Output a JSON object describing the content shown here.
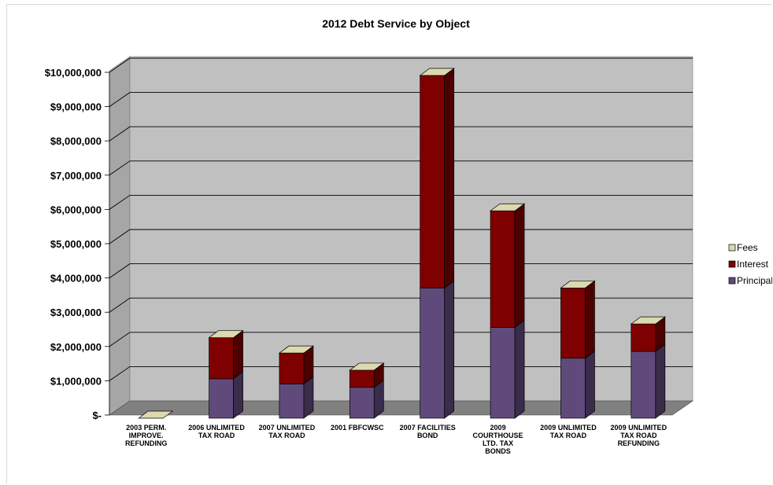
{
  "chart_data": {
    "type": "bar",
    "stacked": true,
    "three_d": true,
    "title": "2012 Debt Service by Object",
    "xlabel": "",
    "ylabel": "",
    "ylim": [
      0,
      10000000
    ],
    "yticks": [
      0,
      1000000,
      2000000,
      3000000,
      4000000,
      5000000,
      6000000,
      7000000,
      8000000,
      9000000,
      10000000
    ],
    "ytick_labels": [
      "$-",
      "$1,000,000",
      "$2,000,000",
      "$3,000,000",
      "$4,000,000",
      "$5,000,000",
      "$6,000,000",
      "$7,000,000",
      "$8,000,000",
      "$9,000,000",
      "$10,000,000"
    ],
    "categories": [
      "2003 PERM. IMPROVE. REFUNDING",
      "2006 UNLIMITED TAX ROAD",
      "2007 UNLIMITED TAX ROAD",
      "2001 FBFCWSC",
      "2007 FACILITIES BOND",
      "2009 COURTHOUSE LTD. TAX BONDS",
      "2009 UNLIMITED TAX ROAD",
      "2009 UNLIMITED TAX ROAD REFUNDING"
    ],
    "category_lines": [
      [
        "2003 PERM.",
        "IMPROVE.",
        "REFUNDING"
      ],
      [
        "2006 UNLIMITED",
        "TAX ROAD"
      ],
      [
        "2007 UNLIMITED",
        "TAX ROAD"
      ],
      [
        "2001 FBFCWSC"
      ],
      [
        "2007 FACILITIES",
        "BOND"
      ],
      [
        "2009",
        "COURTHOUSE",
        "LTD. TAX",
        "BONDS"
      ],
      [
        "2009 UNLIMITED",
        "TAX ROAD"
      ],
      [
        "2009 UNLIMITED",
        "TAX ROAD",
        "REFUNDING"
      ]
    ],
    "series": [
      {
        "name": "Principal",
        "color": "#604a7b",
        "values": [
          0,
          1150000,
          1000000,
          900000,
          3800000,
          2650000,
          1750000,
          1950000
        ]
      },
      {
        "name": "Interest",
        "color": "#7f0000",
        "values": [
          0,
          1200000,
          900000,
          500000,
          6200000,
          3400000,
          2050000,
          800000
        ]
      },
      {
        "name": "Fees",
        "color": "#dcd9b0",
        "values": [
          0,
          0,
          0,
          0,
          0,
          0,
          0,
          0
        ]
      }
    ],
    "legend": {
      "position": "right",
      "order": [
        "Fees",
        "Interest",
        "Principal"
      ]
    },
    "grid": true,
    "wall_color": "#c0c0c0",
    "floor_color": "#808080"
  }
}
